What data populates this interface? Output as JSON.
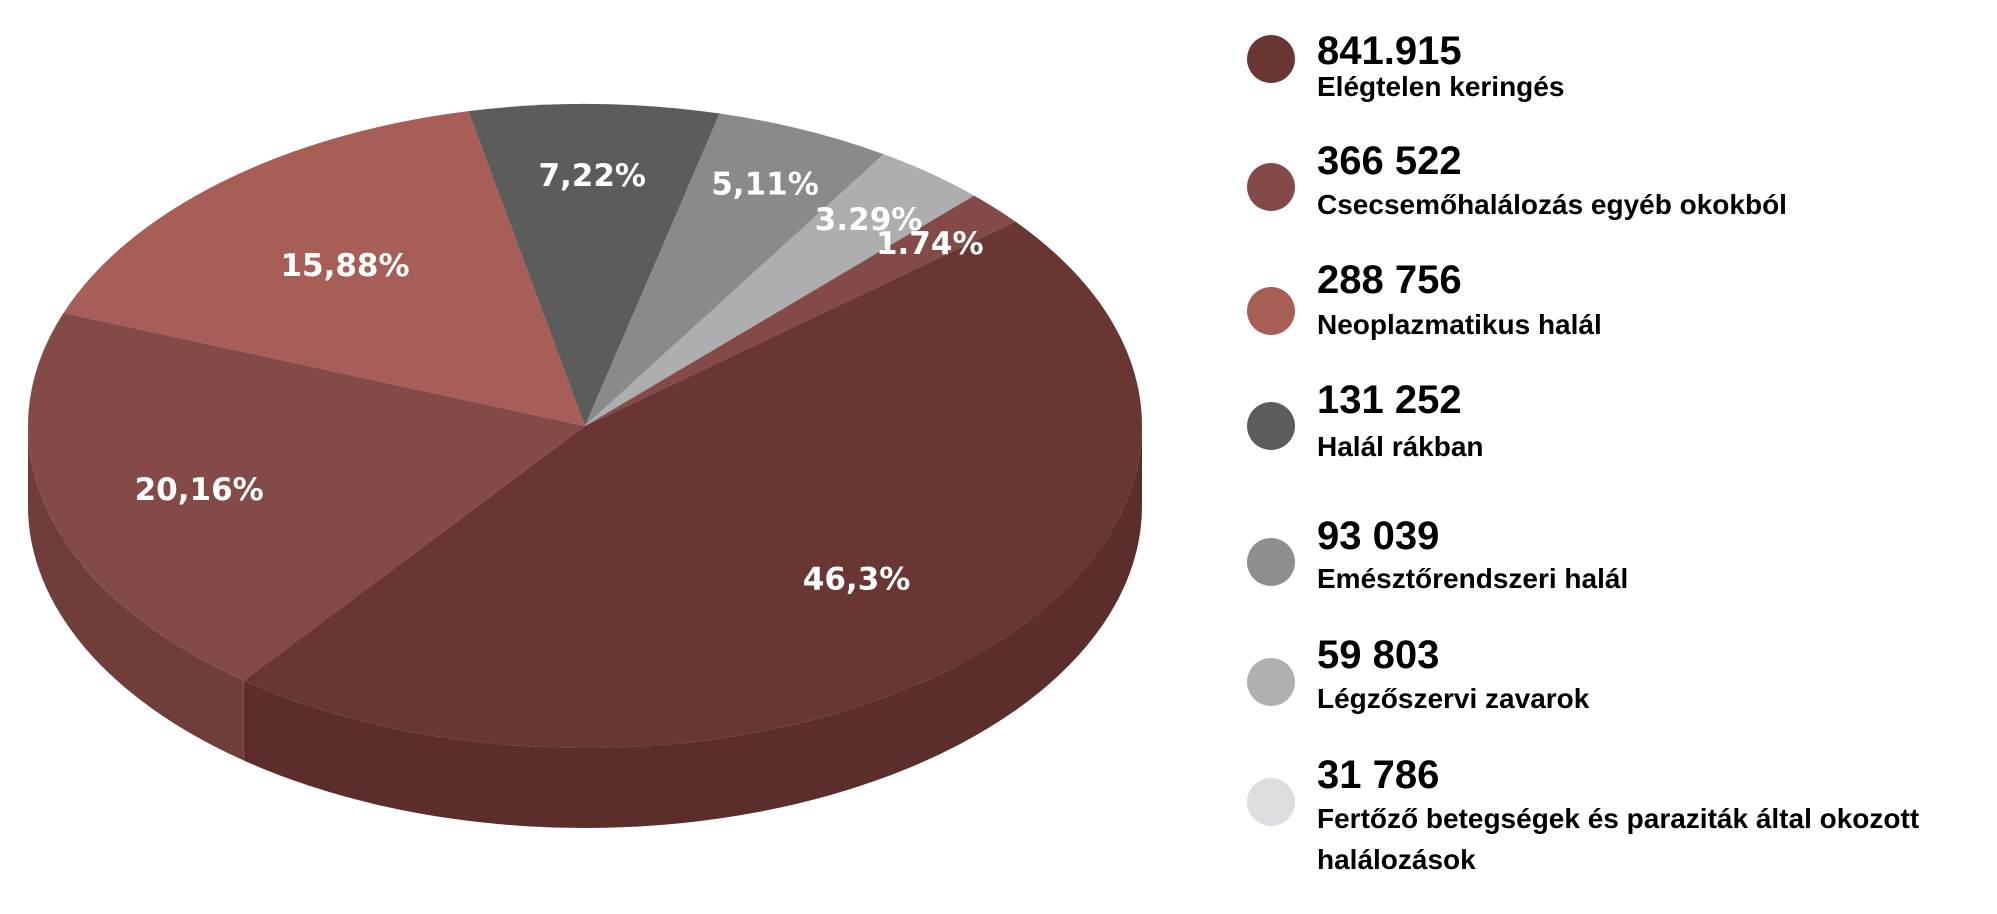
{
  "chart_data": {
    "type": "pie",
    "style": "3d",
    "slices": [
      {
        "label": "46,3%",
        "value": 46.3,
        "color": "#6a3633",
        "side_color": "#5b2d2b"
      },
      {
        "label": "20,16%",
        "value": 20.16,
        "color": "#844a47",
        "side_color": "#6f3d3a"
      },
      {
        "label": "15,88%",
        "value": 15.88,
        "color": "#a65e57",
        "side_color": "#8d4f49"
      },
      {
        "label": "7,22%",
        "value": 7.22,
        "color": "#5c5c5c",
        "side_color": "#4a4a4a"
      },
      {
        "label": "5,11%",
        "value": 5.11,
        "color": "#8a8a8a",
        "side_color": "#777777"
      },
      {
        "label": "3.29%",
        "value": 3.29,
        "color": "#aeaeb0",
        "side_color": "#969698"
      },
      {
        "label": "1.74%",
        "value": 1.74,
        "color": "#844a47",
        "side_color": "#6f3d3a"
      }
    ],
    "legend_position": "right"
  },
  "legend": [
    {
      "value": "841.915",
      "label": "Elégtelen keringés",
      "color": "#6a3633"
    },
    {
      "value": "366 522",
      "label": "Csecsemőhalálozás egyéb okokból",
      "color": "#844a47"
    },
    {
      "value": "288 756",
      "label": "Neoplazmatikus halál",
      "color": "#a65e57"
    },
    {
      "value": "131 252",
      "label": "Halál rákban",
      "color": "#5c5c5c"
    },
    {
      "value": "93 039",
      "label": "Emésztőrendszeri halál",
      "color": "#8e8e8e"
    },
    {
      "value": "59 803",
      "label": "Légzőszervi zavarok",
      "color": "#b0b0b0"
    },
    {
      "value": "31 786",
      "label": "Fertőző betegségek és paraziták által okozott halálozások",
      "color": "#dcdde0"
    }
  ]
}
